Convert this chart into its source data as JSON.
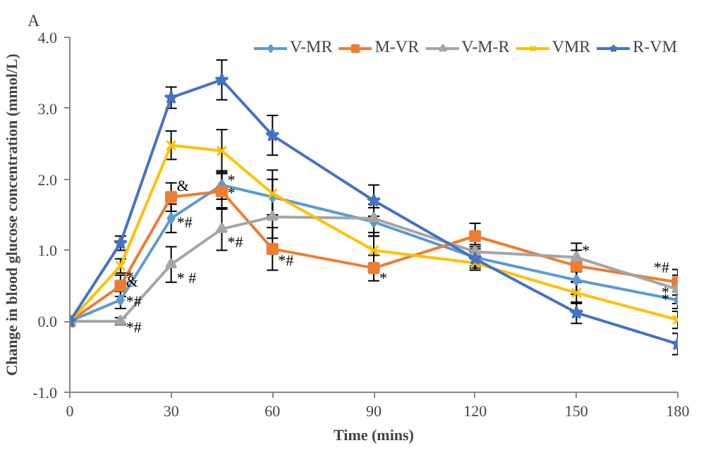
{
  "chart_data": {
    "type": "line",
    "xlabel": "Time (mins)",
    "ylabel": "Change in blood glucose concentration (mmol/L)",
    "x": [
      0,
      15,
      30,
      45,
      60,
      90,
      120,
      150,
      180
    ],
    "xlim": [
      0,
      180
    ],
    "xticks": [
      0,
      30,
      60,
      90,
      120,
      150,
      180
    ],
    "ylim": [
      -1.0,
      4.0
    ],
    "yticks": [
      {
        "value": -1,
        "label": "-1.0"
      },
      {
        "value": 0,
        "label": "0.0"
      },
      {
        "value": 1,
        "label": "1.0"
      },
      {
        "value": 2,
        "label": "2.0"
      },
      {
        "value": 3,
        "label": "3.0"
      },
      {
        "value": 4,
        "label": "4.0"
      }
    ],
    "grid": false,
    "legend": "top",
    "series": [
      {
        "name": "V-MR",
        "color": "#5b9bd5",
        "marker": "diamond",
        "values": [
          0,
          0.3,
          1.45,
          1.92,
          1.75,
          1.4,
          0.9,
          0.58,
          0.3
        ],
        "errors": [
          0.05,
          0.12,
          0.2,
          0.2,
          0.25,
          0.2,
          0.15,
          0.2,
          0.12
        ]
      },
      {
        "name": "M-VR",
        "color": "#ed7d31",
        "marker": "square",
        "values": [
          0,
          0.5,
          1.75,
          1.83,
          1.02,
          0.75,
          1.2,
          0.78,
          0.55
        ],
        "errors": [
          0.05,
          0.15,
          0.2,
          0.25,
          0.3,
          0.18,
          0.18,
          0.22,
          0.18
        ]
      },
      {
        "name": "V-M-R",
        "color": "#a5a5a5",
        "marker": "triangle",
        "values": [
          0,
          0.0,
          0.8,
          1.3,
          1.47,
          1.45,
          0.98,
          0.9,
          0.45
        ],
        "errors": [
          0.05,
          0.05,
          0.25,
          0.3,
          0.3,
          0.2,
          0.1,
          0.2,
          0.2
        ]
      },
      {
        "name": "VMR",
        "color": "#ffc000",
        "marker": "cross",
        "values": [
          0,
          0.78,
          2.48,
          2.4,
          1.8,
          1.0,
          0.82,
          0.4,
          0.02
        ],
        "errors": [
          0.05,
          0.1,
          0.2,
          0.3,
          0.33,
          0.2,
          0.1,
          0.15,
          0.12
        ]
      },
      {
        "name": "R-VM",
        "color": "#4472c4",
        "marker": "star",
        "values": [
          0,
          1.1,
          3.15,
          3.4,
          2.62,
          1.7,
          0.88,
          0.12,
          -0.32
        ],
        "errors": [
          0.05,
          0.1,
          0.15,
          0.28,
          0.28,
          0.22,
          0.1,
          0.15,
          0.15
        ]
      }
    ],
    "annotations": [
      "A",
      {
        "text": "*",
        "x": 15,
        "y": 0.62
      },
      {
        "text": "&",
        "x": 15,
        "y": 0.55
      },
      {
        "text": "*#",
        "x": 15,
        "y": 0.27
      },
      {
        "text": "*#",
        "x": 15,
        "y": -0.1
      },
      {
        "text": "&",
        "x": 30,
        "y": 1.9
      },
      {
        "text": "*#",
        "x": 30,
        "y": 1.38
      },
      {
        "text": "* #",
        "x": 30,
        "y": 0.6
      },
      {
        "text": "*",
        "x": 45,
        "y": 1.98
      },
      {
        "text": "*",
        "x": 45,
        "y": 1.8
      },
      {
        "text": "*#",
        "x": 45,
        "y": 1.1
      },
      {
        "text": "*#",
        "x": 60,
        "y": 0.85
      },
      {
        "text": "*",
        "x": 90,
        "y": 0.6
      },
      {
        "text": "*",
        "x": 150,
        "y": 0.98
      },
      {
        "text": "*#",
        "x": 180,
        "y": 0.75
      },
      {
        "text": "*",
        "x": 180,
        "y": 0.4
      },
      {
        "text": "*",
        "x": 180,
        "y": 0.3
      }
    ]
  }
}
